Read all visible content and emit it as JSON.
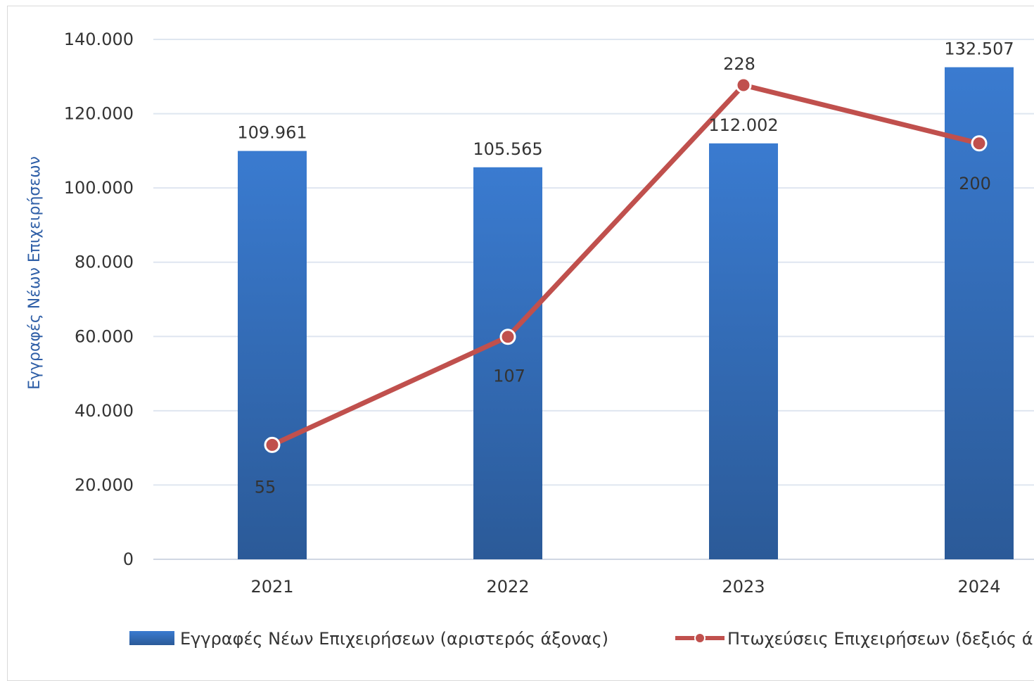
{
  "chart_data": {
    "type": "bar",
    "categories": [
      "2021",
      "2022",
      "2023",
      "2024"
    ],
    "ylabel": "Εγγραφές Νέων Επιχειρήσεων",
    "ylim": [
      0,
      140000
    ],
    "yticks": [
      0,
      20000,
      40000,
      60000,
      80000,
      100000,
      120000,
      140000
    ],
    "ytick_labels": [
      "0",
      "20.000",
      "40.000",
      "60.000",
      "80.000",
      "100.000",
      "120.000",
      "140.000"
    ],
    "grid": true,
    "legend_position": "bottom",
    "series": [
      {
        "name": "Εγγραφές Νέων Επιχειρήσεων (αριστερός άξονας)",
        "type": "bar",
        "axis": "left",
        "values": [
          109961,
          105565,
          112002,
          132507
        ],
        "labels": [
          "109.961",
          "105.565",
          "112.002",
          "132.507"
        ],
        "color": "#2e65ad"
      },
      {
        "name": "Πτωχεύσεις Επιχειρήσεων (δεξιός ά",
        "type": "line",
        "axis": "right",
        "values": [
          55,
          107,
          228,
          200
        ],
        "labels": [
          "55",
          "107",
          "228",
          "200"
        ],
        "color": "#c0504d",
        "y2lim": [
          0,
          250
        ]
      }
    ]
  }
}
